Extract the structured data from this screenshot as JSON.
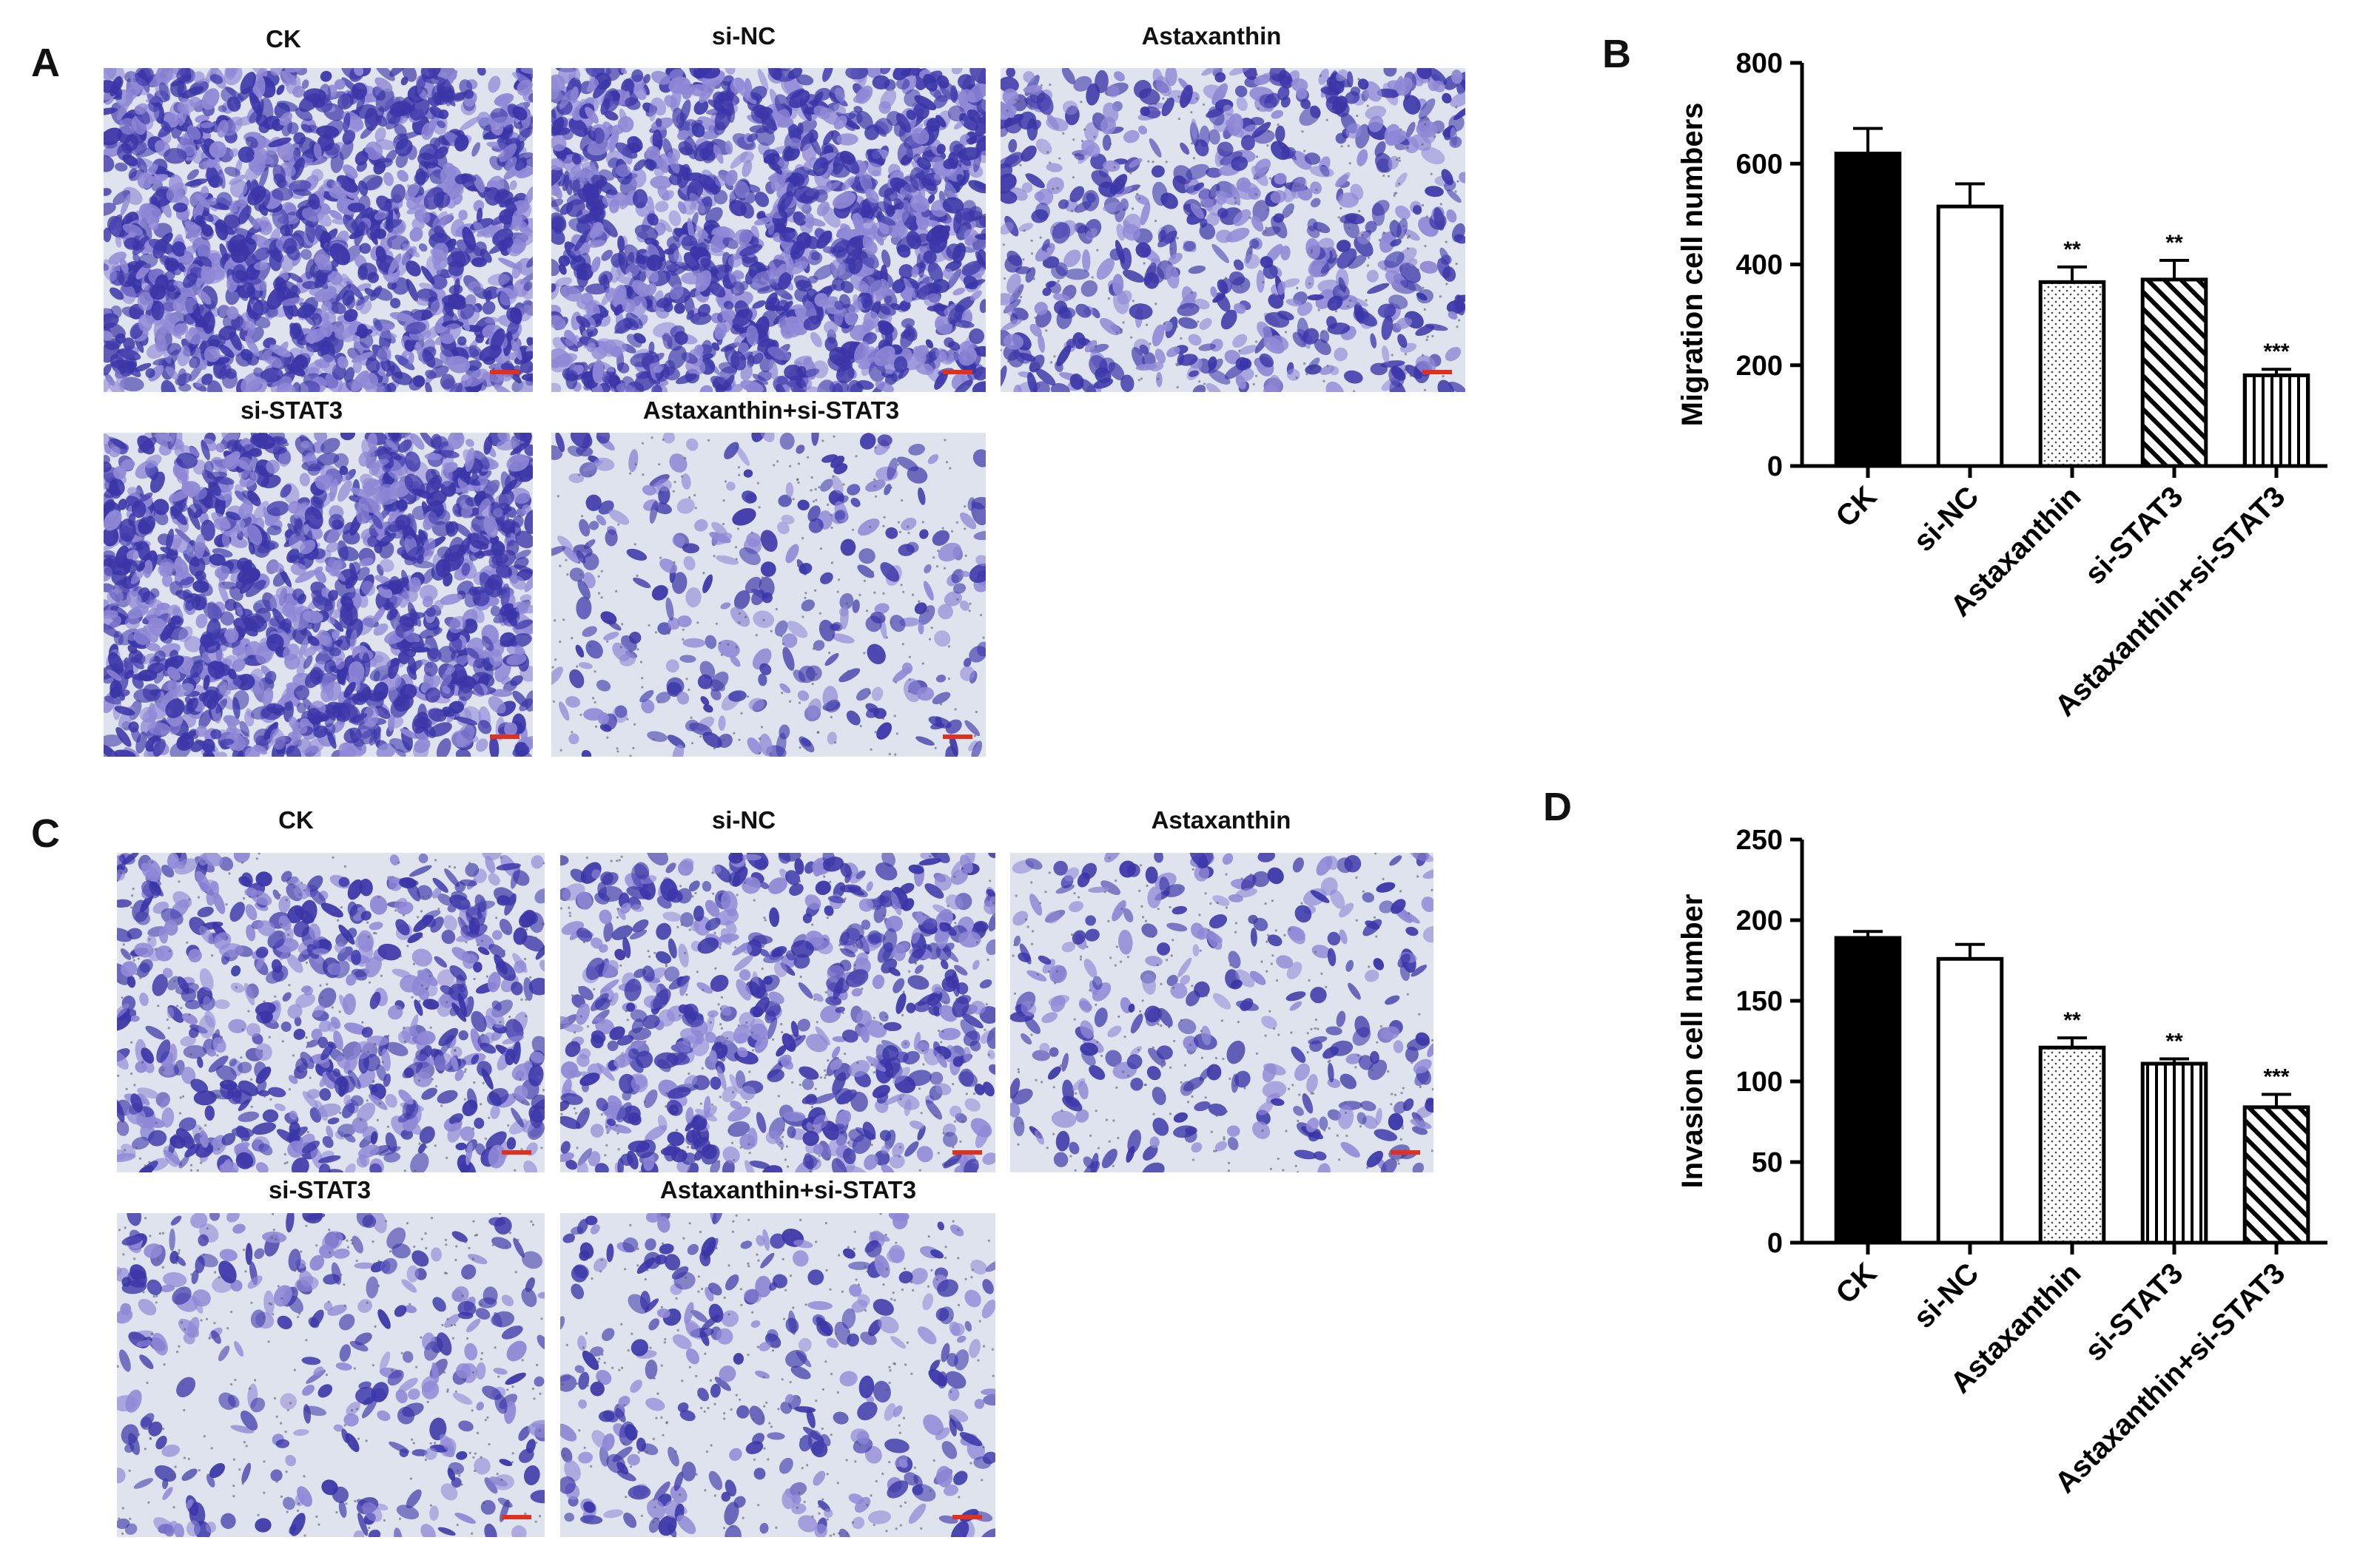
{
  "panels": {
    "A": {
      "letter": "A",
      "images": [
        {
          "label": "CK",
          "density": "dense"
        },
        {
          "label": "si-NC",
          "density": "dense"
        },
        {
          "label": "Astaxanthin",
          "density": "medium"
        },
        {
          "label": "si-STAT3",
          "density": "dense"
        },
        {
          "label": "Astaxanthin+si-STAT3",
          "density": "sparse"
        }
      ]
    },
    "C": {
      "letter": "C",
      "images": [
        {
          "label": "CK",
          "density": "medium"
        },
        {
          "label": "si-NC",
          "density": "medium"
        },
        {
          "label": "Astaxanthin",
          "density": "sparse"
        },
        {
          "label": "si-STAT3",
          "density": "sparse"
        },
        {
          "label": "Astaxanthin+si-STAT3",
          "density": "sparse"
        }
      ]
    },
    "B": {
      "letter": "B"
    },
    "D": {
      "letter": "D"
    }
  },
  "colors": {
    "stain": "#3b35a8",
    "stain_light": "#8f88d6",
    "background_tint": "#dfe3ee",
    "bar_edge": "#000000",
    "scale_bar": "#e0301e"
  },
  "chart_data": [
    {
      "type": "bar",
      "panel": "B",
      "ylabel": "Migration cell numbers",
      "ylim": [
        0,
        800
      ],
      "yticks": [
        0,
        200,
        400,
        600,
        800
      ],
      "categories": [
        "CK",
        "si-NC",
        "Astaxanthin",
        "si-STAT3",
        "Astaxanthin+si-STAT3"
      ],
      "values": [
        620,
        515,
        365,
        370,
        180
      ],
      "errors": [
        50,
        45,
        30,
        38,
        12
      ],
      "significance": [
        "",
        "",
        "**",
        "**",
        "***"
      ],
      "patterns": [
        "solid-black",
        "white",
        "dots",
        "diagonal-hatch",
        "vertical-lines"
      ]
    },
    {
      "type": "bar",
      "panel": "D",
      "ylabel": "Invasion cell number",
      "ylim": [
        0,
        250
      ],
      "yticks": [
        0,
        50,
        100,
        150,
        200,
        250
      ],
      "categories": [
        "CK",
        "si-NC",
        "Astaxanthin",
        "si-STAT3",
        "Astaxanthin+si-STAT3"
      ],
      "values": [
        189,
        176,
        121,
        111,
        84
      ],
      "errors": [
        4,
        9,
        6,
        3,
        8
      ],
      "significance": [
        "",
        "",
        "**",
        "**",
        "***"
      ],
      "patterns": [
        "solid-black",
        "white",
        "dots",
        "vertical-lines",
        "diagonal-hatch"
      ]
    }
  ]
}
